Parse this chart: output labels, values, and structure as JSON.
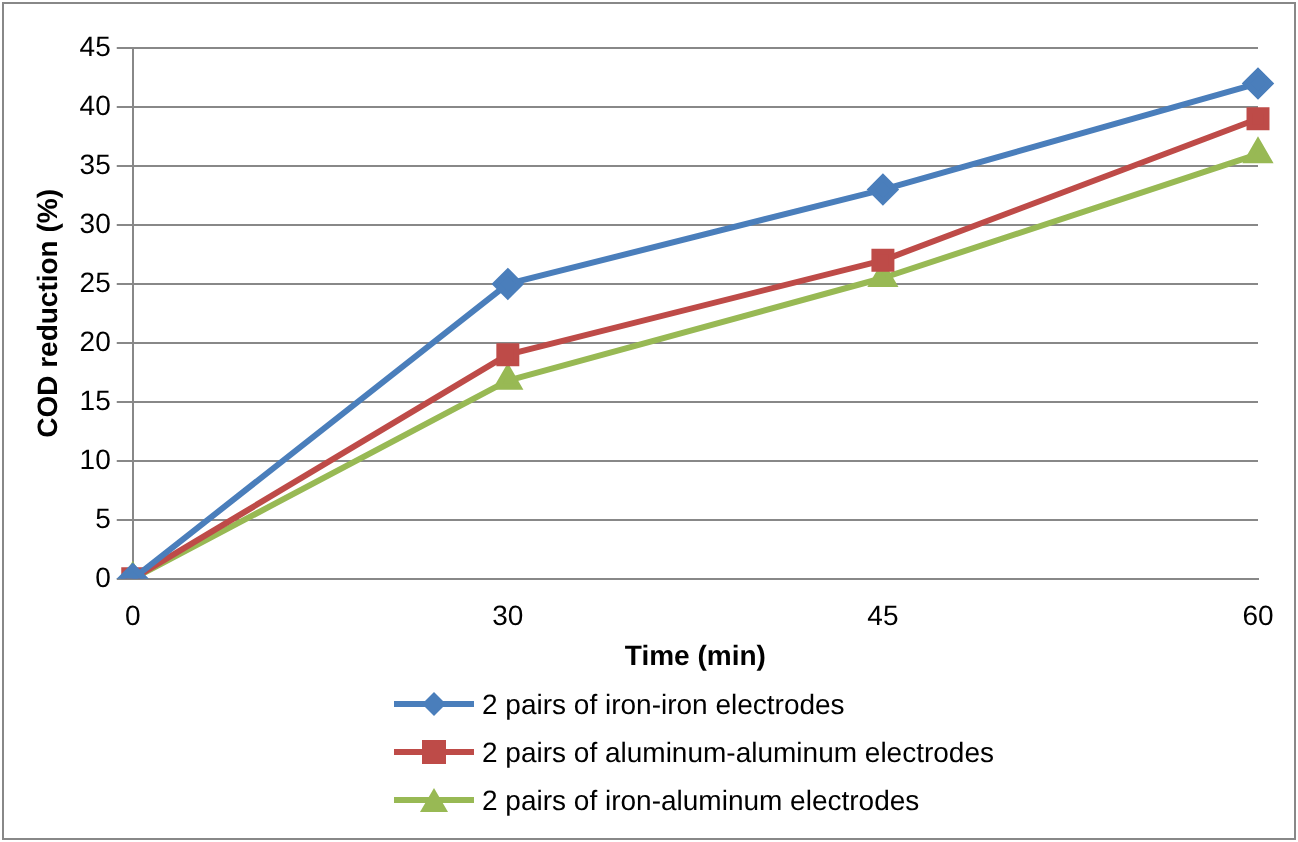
{
  "chart_data": {
    "type": "line",
    "xlabel": "Time (min)",
    "ylabel": "COD reduction (%)",
    "categories": [
      "0",
      "30",
      "45",
      "60"
    ],
    "series": [
      {
        "name": "2 pairs of iron-iron electrodes",
        "color": "#4a7ebb",
        "marker": "diamond",
        "values": [
          0,
          25,
          33,
          42
        ]
      },
      {
        "name": "2 pairs of aluminum-aluminum electrodes",
        "color": "#be4b48",
        "marker": "square",
        "values": [
          0,
          19,
          27,
          39
        ]
      },
      {
        "name": "2 pairs of iron-aluminum electrodes",
        "color": "#98b954",
        "marker": "triangle",
        "values": [
          0,
          16.8,
          25.5,
          36
        ]
      }
    ],
    "ylim": [
      0,
      45
    ],
    "yticks": [
      0,
      5,
      10,
      15,
      20,
      25,
      30,
      35,
      40,
      45
    ],
    "grid": "y",
    "legend": "bottom",
    "line_style": "solid"
  }
}
